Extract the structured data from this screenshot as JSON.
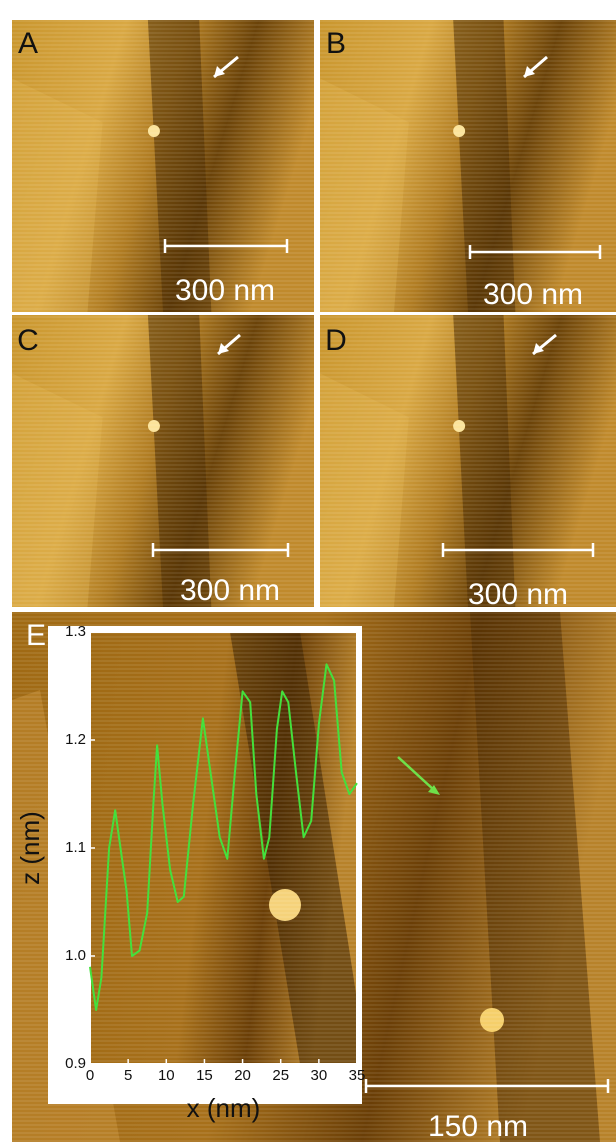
{
  "panels": [
    {
      "label": "A",
      "scale_bar": "300 nm"
    },
    {
      "label": "B",
      "scale_bar": "300 nm"
    },
    {
      "label": "C",
      "scale_bar": "300 nm"
    },
    {
      "label": "D",
      "scale_bar": "300 nm"
    },
    {
      "label": "E",
      "scale_bar": "150 nm"
    }
  ],
  "chart_data": {
    "type": "line",
    "xlabel": "x (nm)",
    "ylabel": "z (nm)",
    "x": [
      0,
      0.8,
      1.5,
      2.5,
      3.3,
      4.2,
      4.8,
      5.5,
      6.5,
      7.5,
      8.3,
      8.8,
      9.5,
      10.5,
      11.5,
      12.3,
      13.5,
      14.8,
      15.8,
      17,
      18,
      19,
      20,
      21,
      21.8,
      22.8,
      23.5,
      24.5,
      25.2,
      26,
      27,
      28,
      29,
      30,
      31,
      32,
      33,
      34,
      35
    ],
    "series": [
      {
        "color": "#44e03c",
        "values": [
          0.99,
          0.95,
          0.98,
          1.1,
          1.135,
          1.09,
          1.06,
          1.0,
          1.005,
          1.04,
          1.14,
          1.195,
          1.14,
          1.08,
          1.05,
          1.055,
          1.14,
          1.22,
          1.17,
          1.11,
          1.09,
          1.17,
          1.245,
          1.235,
          1.15,
          1.09,
          1.11,
          1.21,
          1.245,
          1.235,
          1.17,
          1.11,
          1.125,
          1.215,
          1.27,
          1.255,
          1.17,
          1.15,
          1.16
        ]
      }
    ],
    "xlim": [
      0,
      35
    ],
    "ylim": [
      0.9,
      1.3
    ],
    "xticks": [
      0,
      5,
      10,
      15,
      20,
      25,
      30,
      35
    ],
    "yticks": [
      0.9,
      {
        "value": 1,
        "label": "1.0"
      },
      1.1,
      1.2,
      1.3
    ]
  }
}
